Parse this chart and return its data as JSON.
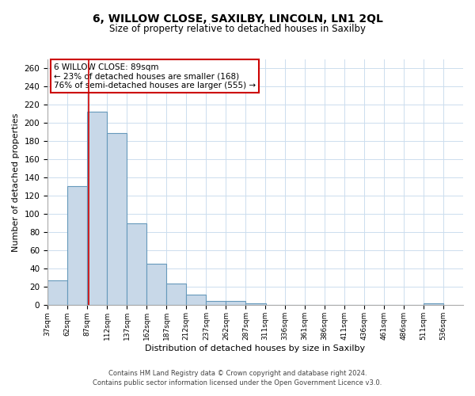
{
  "title_line1": "6, WILLOW CLOSE, SAXILBY, LINCOLN, LN1 2QL",
  "title_line2": "Size of property relative to detached houses in Saxilby",
  "xlabel": "Distribution of detached houses by size in Saxilby",
  "ylabel": "Number of detached properties",
  "annotation_line1": "6 WILLOW CLOSE: 89sqm",
  "annotation_line2": "← 23% of detached houses are smaller (168)",
  "annotation_line3": "76% of semi-detached houses are larger (555) →",
  "property_size_sqm": 89,
  "bin_edges": [
    37,
    62,
    87,
    112,
    137,
    162,
    187,
    212,
    237,
    262,
    287,
    311,
    336,
    361,
    386,
    411,
    436,
    461,
    486,
    511,
    536
  ],
  "bar_values": [
    27,
    131,
    213,
    189,
    90,
    46,
    24,
    12,
    5,
    5,
    2,
    0,
    0,
    0,
    0,
    0,
    0,
    0,
    0,
    2
  ],
  "bar_color": "#c8d8e8",
  "bar_edge_color": "#6699bb",
  "vline_color": "#cc0000",
  "vline_x": 89,
  "annotation_box_edge_color": "#cc0000",
  "annotation_box_face_color": "#ffffff",
  "grid_color": "#ccddee",
  "background_color": "#ffffff",
  "ylim": [
    0,
    270
  ],
  "yticks": [
    0,
    20,
    40,
    60,
    80,
    100,
    120,
    140,
    160,
    180,
    200,
    220,
    240,
    260
  ],
  "footnote_line1": "Contains HM Land Registry data © Crown copyright and database right 2024.",
  "footnote_line2": "Contains public sector information licensed under the Open Government Licence v3.0.",
  "title_fontsize": 10,
  "subtitle_fontsize": 8.5,
  "ylabel_fontsize": 8,
  "xlabel_fontsize": 8,
  "ytick_fontsize": 7.5,
  "xtick_fontsize": 6.5,
  "annotation_fontsize": 7.5,
  "footnote_fontsize": 6
}
